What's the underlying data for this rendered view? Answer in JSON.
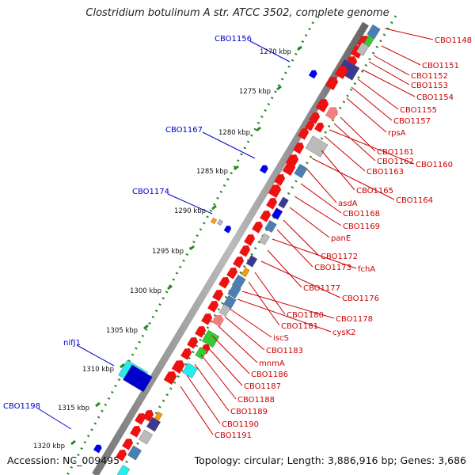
{
  "title": "Clostridium botulinum A str. ATCC 3502, complete genome",
  "accession": "Accession: NC_009495",
  "summary": "Topology: circular; Length: 3,886,916 bp; Genes: 3,686",
  "ruler": [
    {
      "label": "1270 kbp"
    },
    {
      "label": "1275 kbp"
    },
    {
      "label": "1280 kbp"
    },
    {
      "label": "1285 kbp"
    },
    {
      "label": "1290 kbp"
    },
    {
      "label": "1295 kbp"
    },
    {
      "label": "1300 kbp"
    },
    {
      "label": "1305 kbp"
    },
    {
      "label": "1310 kbp"
    },
    {
      "label": "1315 kbp"
    },
    {
      "label": "1320 kbp"
    }
  ],
  "left_labels": [
    "CBO1156",
    "CBO1167",
    "CBO1174",
    "nifJ1",
    "CBO1198"
  ],
  "right_labels": [
    "CBO1148",
    "CBO1151",
    "CBO1152",
    "CBO1153",
    "CBO1154",
    "CBO1155",
    "CBO1157",
    "rpsA",
    "CBO1161",
    "CBO1162",
    "CBO1160",
    "CBO1163",
    "CBO1165",
    "CBO1164",
    "asdA",
    "CBO1168",
    "CBO1169",
    "panE",
    "CBO1172",
    "CBO1173",
    "fchA",
    "CBO1177",
    "CBO1176",
    "CBO1180",
    "CBO1181",
    "CBO1178",
    "cysK2",
    "iscS",
    "CBO1183",
    "mnmA",
    "CBO1186",
    "CBO1187",
    "CBO1188",
    "CBO1189",
    "CBO1190",
    "CBO1191"
  ],
  "colors": {
    "label_left": "#0000cc",
    "label_right": "#cc0000",
    "gene_forward": "#ee1111",
    "ruler_dots": "#228822"
  }
}
